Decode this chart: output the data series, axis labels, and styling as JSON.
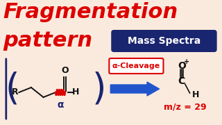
{
  "bg_color": "#faeade",
  "title_line1": "Fragmentation",
  "title_line2": "pattern",
  "title_color": "#dd0000",
  "title_fontsize": 22,
  "badge_text": "Mass Spectra",
  "badge_bg": "#1a2570",
  "badge_text_color": "#ffffff",
  "badge_fontsize": 10,
  "bracket_color": "#1a2570",
  "molecule_color": "#111111",
  "alpha_color": "#1a2570",
  "wiggly_color": "#dd0000",
  "arrow_color": "#2255cc",
  "cleavage_box_bg": "#ffffff",
  "cleavage_box_border": "#dd0000",
  "cleavage_text": "α-Cleavage",
  "cleavage_text_color": "#dd0000",
  "cleavage_fontsize": 8,
  "mz_color": "#dd0000",
  "mz_text": "m/z = 29",
  "mz_fontsize": 9,
  "mol_color": "#111111"
}
